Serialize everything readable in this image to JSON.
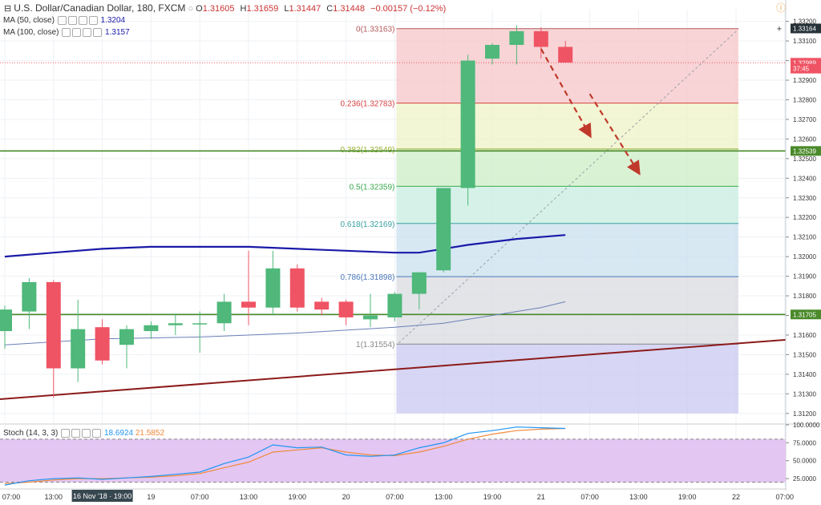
{
  "header": {
    "symbol": "U.S. Dollar/Canadian Dollar, 180, FXCM",
    "open_label": "O",
    "open": "1.31605",
    "high_label": "H",
    "high": "1.31659",
    "low_label": "L",
    "low": "1.31447",
    "close_label": "C",
    "close": "1.31448",
    "change": "−0.00157 (−0.12%)",
    "ma50_label": "MA (50, close)",
    "ma50_value": "1.3204",
    "ma100_label": "MA (100, close)",
    "ma100_value": "1.3157"
  },
  "stoch": {
    "label": "Stoch (14, 3, 3)",
    "k_value": "18.6924",
    "d_value": "21.5852"
  },
  "colors": {
    "bull": "#4fb87a",
    "bear": "#ef5464",
    "ma50": "#1a1aa8",
    "ma100": "#6b7fb8",
    "trend": "#8b1a1a",
    "hline": "#4a8a2a",
    "arrow": "#c0392b",
    "stoch_k": "#2196f3",
    "stoch_d": "#f08a3c"
  },
  "chart_data": {
    "type": "candlestick",
    "title": "U.S. Dollar/Canadian Dollar, 180, FXCM",
    "ylim": [
      1.3115,
      1.3326
    ],
    "y_ticks": [
      "1.33200",
      "1.33100",
      "1.33000",
      "1.32900",
      "1.32800",
      "1.32700",
      "1.32600",
      "1.32500",
      "1.32400",
      "1.32300",
      "1.32200",
      "1.32100",
      "1.32000",
      "1.31900",
      "1.31800",
      "1.31700",
      "1.31600",
      "1.31500",
      "1.31400",
      "1.31300",
      "1.31200"
    ],
    "y_tick_values": [
      1.332,
      1.331,
      1.33,
      1.329,
      1.328,
      1.327,
      1.326,
      1.325,
      1.324,
      1.323,
      1.322,
      1.321,
      1.32,
      1.319,
      1.318,
      1.317,
      1.316,
      1.315,
      1.314,
      1.313,
      1.312
    ],
    "x_ticks": [
      {
        "i": 0,
        "label": "07:00"
      },
      {
        "i": 2,
        "label": "13:00"
      },
      {
        "i": 4,
        "label": "16 Nov '18 · 19:00"
      },
      {
        "i": 6,
        "label": "19"
      },
      {
        "i": 8,
        "label": "07:00"
      },
      {
        "i": 10,
        "label": "13:00"
      },
      {
        "i": 12,
        "label": "19:00"
      },
      {
        "i": 14,
        "label": "20"
      },
      {
        "i": 16,
        "label": "07:00"
      },
      {
        "i": 18,
        "label": "13:00"
      },
      {
        "i": 20,
        "label": "19:00"
      },
      {
        "i": 22,
        "label": "21"
      },
      {
        "i": 24,
        "label": "07:00"
      },
      {
        "i": 26,
        "label": "13:00"
      },
      {
        "i": 28,
        "label": "19:00"
      },
      {
        "i": 30,
        "label": "22"
      },
      {
        "i": 32,
        "label": "07:00"
      }
    ],
    "candles": [
      {
        "o": 1.3162,
        "h": 1.3175,
        "l": 1.3153,
        "c": 1.3173
      },
      {
        "o": 1.3172,
        "h": 1.3189,
        "l": 1.3163,
        "c": 1.3187
      },
      {
        "o": 1.3187,
        "h": 1.3188,
        "l": 1.3128,
        "c": 1.3143
      },
      {
        "o": 1.3143,
        "h": 1.3178,
        "l": 1.3136,
        "c": 1.3163
      },
      {
        "o": 1.3164,
        "h": 1.3168,
        "l": 1.3145,
        "c": 1.3147
      },
      {
        "o": 1.3155,
        "h": 1.3165,
        "l": 1.3143,
        "c": 1.3163
      },
      {
        "o": 1.3162,
        "h": 1.3167,
        "l": 1.3158,
        "c": 1.3165
      },
      {
        "o": 1.3165,
        "h": 1.3171,
        "l": 1.316,
        "c": 1.3166
      },
      {
        "o": 1.3166,
        "h": 1.3172,
        "l": 1.3151,
        "c": 1.3166
      },
      {
        "o": 1.3166,
        "h": 1.3181,
        "l": 1.3162,
        "c": 1.3177
      },
      {
        "o": 1.3177,
        "h": 1.3203,
        "l": 1.3165,
        "c": 1.3174
      },
      {
        "o": 1.3174,
        "h": 1.3203,
        "l": 1.317,
        "c": 1.3194
      },
      {
        "o": 1.3194,
        "h": 1.3196,
        "l": 1.3172,
        "c": 1.3174
      },
      {
        "o": 1.3177,
        "h": 1.3179,
        "l": 1.317,
        "c": 1.3173
      },
      {
        "o": 1.3177,
        "h": 1.3178,
        "l": 1.3165,
        "c": 1.3169
      },
      {
        "o": 1.3168,
        "h": 1.3181,
        "l": 1.3164,
        "c": 1.317
      },
      {
        "o": 1.3169,
        "h": 1.3182,
        "l": 1.3167,
        "c": 1.3181
      },
      {
        "o": 1.3181,
        "h": 1.3192,
        "l": 1.3173,
        "c": 1.3192
      },
      {
        "o": 1.3193,
        "h": 1.3235,
        "l": 1.3192,
        "c": 1.3235
      },
      {
        "o": 1.3235,
        "h": 1.3303,
        "l": 1.3226,
        "c": 1.33
      },
      {
        "o": 1.3301,
        "h": 1.3309,
        "l": 1.3298,
        "c": 1.3308
      },
      {
        "o": 1.3308,
        "h": 1.3318,
        "l": 1.3298,
        "c": 1.3315
      },
      {
        "o": 1.3315,
        "h": 1.3317,
        "l": 1.3301,
        "c": 1.3307
      },
      {
        "o": 1.3307,
        "h": 1.331,
        "l": 1.3299,
        "c": 1.3299
      }
    ],
    "ma50": [
      [
        0,
        1.32
      ],
      [
        2,
        1.3202
      ],
      [
        4,
        1.3204
      ],
      [
        6,
        1.3205
      ],
      [
        8,
        1.3205
      ],
      [
        10,
        1.3205
      ],
      [
        12,
        1.3204
      ],
      [
        14,
        1.3203
      ],
      [
        16,
        1.3202
      ],
      [
        17,
        1.3202
      ],
      [
        18,
        1.3204
      ],
      [
        19,
        1.3206
      ],
      [
        21,
        1.3209
      ],
      [
        23,
        1.3211
      ]
    ],
    "ma100": [
      [
        0,
        1.3155
      ],
      [
        4,
        1.3158
      ],
      [
        8,
        1.3159
      ],
      [
        12,
        1.3161
      ],
      [
        16,
        1.3164
      ],
      [
        18,
        1.3166
      ],
      [
        20,
        1.317
      ],
      [
        22,
        1.3174
      ],
      [
        23,
        1.3177
      ]
    ],
    "fibonacci": {
      "levels": [
        {
          "label": "0(1.33163)",
          "value": 1.33163,
          "fill": "#f5c6c8",
          "line": "#b45a5a"
        },
        {
          "label": "0.236(1.32783)",
          "value": 1.32783,
          "fill": "#eef3c6",
          "line": "#d64040"
        },
        {
          "label": "0.382(1.32549)",
          "value": 1.32549,
          "fill": "#cdeec6",
          "line": "#9ab030"
        },
        {
          "label": "0.5(1.32359)",
          "value": 1.32359,
          "fill": "#c8ede0",
          "line": "#3aaa50"
        },
        {
          "label": "0.618(1.32169)",
          "value": 1.32169,
          "fill": "#c9e0ef",
          "line": "#3aa0a0"
        },
        {
          "label": "0.786(1.31898)",
          "value": 1.31898,
          "fill": "#dadbe0",
          "line": "#4a78b8"
        },
        {
          "label": "1(1.31554)",
          "value": 1.31554,
          "fill": "#c9c8f0",
          "line": "#888888"
        }
      ],
      "bottom": 1.312,
      "start_i": 16,
      "end_i": 30
    },
    "horizontal_lines": [
      {
        "value": 1.32539,
        "label": "1.32539",
        "color": "#4a8a2a"
      },
      {
        "value": 1.31705,
        "label": "1.31705",
        "color": "#4a8a2a"
      }
    ],
    "price_markers": [
      {
        "value": 1.33164,
        "label": "1.33164",
        "color": "#263238"
      },
      {
        "value": 1.32989,
        "label": "1.32989",
        "color": "#ef5464"
      },
      {
        "value": 1.32959,
        "label": "37:45",
        "color": "#ef5464"
      }
    ],
    "trendline": {
      "from": [
        -0.5,
        1.3127
      ],
      "to": [
        32.5,
        1.3158
      ]
    },
    "arrows": [
      {
        "from": [
          22,
          1.3306
        ],
        "to": [
          24,
          1.3262
        ]
      },
      {
        "from": [
          24,
          1.3283
        ],
        "to": [
          26,
          1.3243
        ]
      }
    ],
    "stoch": {
      "ylim": [
        15,
        100
      ],
      "y_ticks": [
        "100.0000",
        "75.0000",
        "50.0000",
        "25.0000"
      ],
      "y_tick_values": [
        100,
        75,
        50,
        25
      ],
      "bands": [
        20,
        80
      ],
      "k": [
        16,
        22,
        25,
        26,
        24,
        26,
        28,
        31,
        34,
        46,
        55,
        72,
        68,
        69,
        58,
        56,
        58,
        68,
        75,
        88,
        92,
        97,
        96,
        95
      ],
      "d": [
        18,
        20,
        23,
        25,
        25,
        26,
        27,
        29,
        32,
        40,
        48,
        62,
        65,
        68,
        62,
        58,
        57,
        62,
        70,
        80,
        87,
        92,
        94,
        95
      ]
    }
  }
}
